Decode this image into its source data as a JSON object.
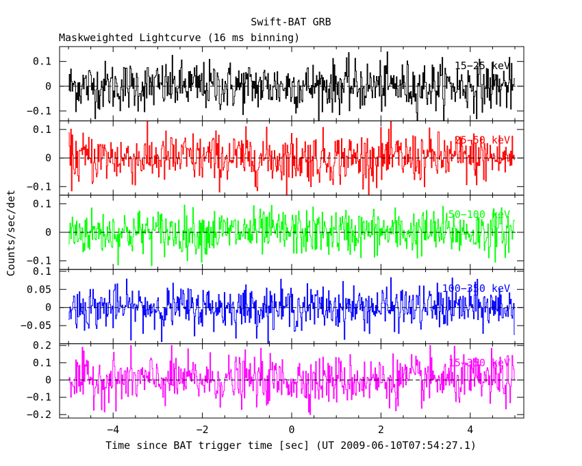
{
  "title": "Swift-BAT GRB",
  "subtitle": "Maskweighted Lightcurve (16 ms binning)",
  "xlabel": "Time since BAT trigger time [sec] (UT 2009-06-10T07:54:27.1)",
  "ylabel": "Counts/sec/det",
  "colors": {
    "axes": "#000000",
    "background": "#ffffff",
    "zero_line": "#000000"
  },
  "chart_data": {
    "type": "line",
    "title": "Swift-BAT GRB",
    "subtitle": "Maskweighted Lightcurve (16 ms binning)",
    "xlabel": "Time since BAT trigger time [sec] (UT 2009-06-10T07:54:27.1)",
    "ylabel": "Counts/sec/det",
    "xlim": [
      -5.2,
      5.2
    ],
    "x_range_data": [
      -5.0,
      5.0
    ],
    "bin_width_s": 0.016,
    "x_ticks": [
      -4,
      -2,
      0,
      2,
      4
    ],
    "x_tick_labels": [
      "−4",
      "−2",
      "0",
      "2",
      "4"
    ],
    "grid": false,
    "legend": "none",
    "panels": [
      {
        "name": "15-25 keV",
        "label": "15−25 keV",
        "color": "#000000",
        "ylim": [
          -0.14,
          0.16
        ],
        "y_ticks": [
          0.1,
          0,
          -0.1
        ],
        "y_tick_labels": [
          "0.1",
          "0",
          "−0.1"
        ],
        "typical_amplitude": 0.05,
        "peak_amplitude": 0.15
      },
      {
        "name": "25-50 keV",
        "label": "25−50 keV",
        "color": "#ff0000",
        "ylim": [
          -0.13,
          0.13
        ],
        "y_ticks": [
          0.1,
          0,
          -0.1
        ],
        "y_tick_labels": [
          "0.1",
          "0",
          "−0.1"
        ],
        "typical_amplitude": 0.045,
        "peak_amplitude": 0.13
      },
      {
        "name": "50-100 keV",
        "label": "50−100 keV",
        "color": "#00ff00",
        "ylim": [
          -0.13,
          0.13
        ],
        "y_ticks": [
          0.1,
          0,
          -0.1
        ],
        "y_tick_labels": [
          "0.1",
          "0",
          "−0.1"
        ],
        "typical_amplitude": 0.04,
        "peak_amplitude": 0.13
      },
      {
        "name": "100-350 keV",
        "label": "100−350 keV",
        "color": "#0000ff",
        "ylim": [
          -0.1,
          0.105
        ],
        "y_ticks": [
          0.1,
          0.05,
          0,
          -0.05
        ],
        "y_tick_labels": [
          "0.1",
          "0.05",
          "0",
          "−0.05"
        ],
        "typical_amplitude": 0.03,
        "peak_amplitude": 0.1
      },
      {
        "name": "15-350 keV",
        "label": "15−350 keV",
        "color": "#ff00ff",
        "ylim": [
          -0.22,
          0.21
        ],
        "y_ticks": [
          0.2,
          0.1,
          0,
          -0.1,
          -0.2
        ],
        "y_tick_labels": [
          "0.2",
          "0.1",
          "0",
          "−0.1",
          "−0.2"
        ],
        "typical_amplitude": 0.07,
        "peak_amplitude": 0.2
      }
    ]
  }
}
